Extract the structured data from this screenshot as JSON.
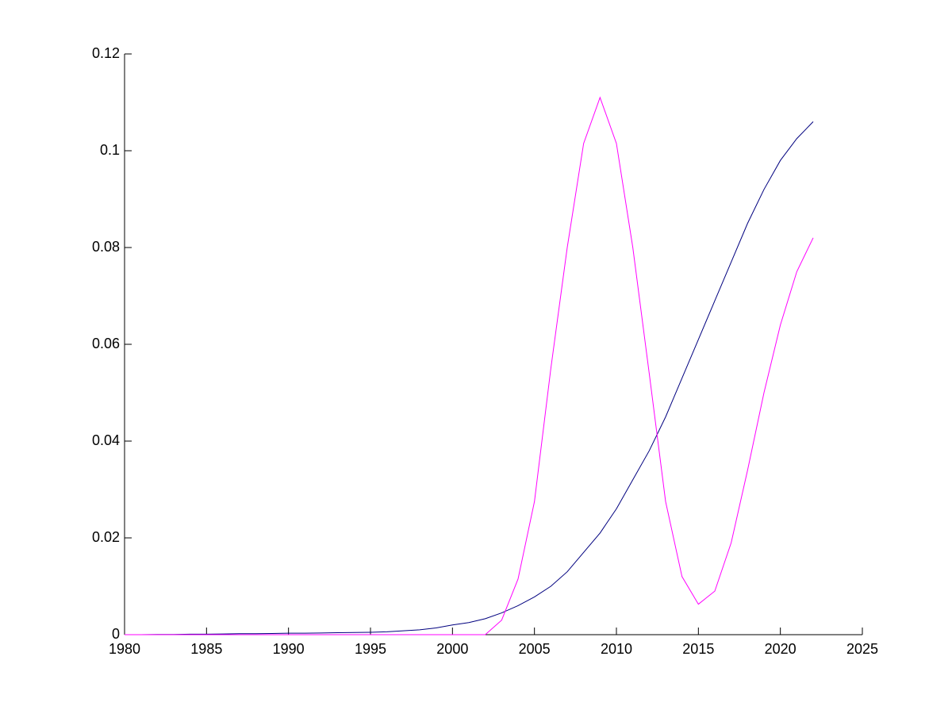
{
  "chart_data": {
    "type": "line",
    "x": [
      1980,
      1981,
      1982,
      1983,
      1984,
      1985,
      1986,
      1987,
      1988,
      1989,
      1990,
      1991,
      1992,
      1993,
      1994,
      1995,
      1996,
      1997,
      1998,
      1999,
      2000,
      2001,
      2002,
      2003,
      2004,
      2005,
      2006,
      2007,
      2008,
      2009,
      2010,
      2011,
      2012,
      2013,
      2014,
      2015,
      2016,
      2017,
      2018,
      2019,
      2020,
      2021,
      2022
    ],
    "series": [
      {
        "color": "#00007f",
        "values": [
          0,
          0,
          5e-05,
          5e-05,
          0.0001,
          0.0001,
          0.00015,
          0.0002,
          0.0002,
          0.00025,
          0.0003,
          0.0003,
          0.00035,
          0.0004,
          0.00045,
          0.0005,
          0.0006,
          0.0008,
          0.001,
          0.0014,
          0.002,
          0.0025,
          0.0033,
          0.0045,
          0.006,
          0.0078,
          0.01,
          0.013,
          0.017,
          0.021,
          0.026,
          0.032,
          0.038,
          0.045,
          0.053,
          0.061,
          0.069,
          0.077,
          0.085,
          0.092,
          0.098,
          0.1025,
          0.106
        ]
      },
      {
        "color": "#ff00ff",
        "values": [
          0,
          0,
          0,
          0,
          0,
          0,
          0,
          0,
          0,
          0,
          0,
          0,
          0,
          0,
          0,
          0,
          0,
          0,
          0,
          0,
          0,
          0,
          0,
          0.003,
          0.0115,
          0.0275,
          0.055,
          0.08,
          0.1015,
          0.111,
          0.1015,
          0.08,
          0.054,
          0.0275,
          0.012,
          0.0063,
          0.009,
          0.019,
          0.034,
          0.05,
          0.064,
          0.075,
          0.082
        ]
      }
    ],
    "xlim": [
      1980,
      2025
    ],
    "xticks": [
      1980,
      1985,
      1990,
      1995,
      2000,
      2005,
      2010,
      2015,
      2020,
      2025
    ],
    "ylim": [
      0,
      0.12
    ],
    "yticks": [
      0,
      0.02,
      0.04,
      0.06,
      0.08,
      0.1,
      0.12
    ],
    "grid": false
  }
}
